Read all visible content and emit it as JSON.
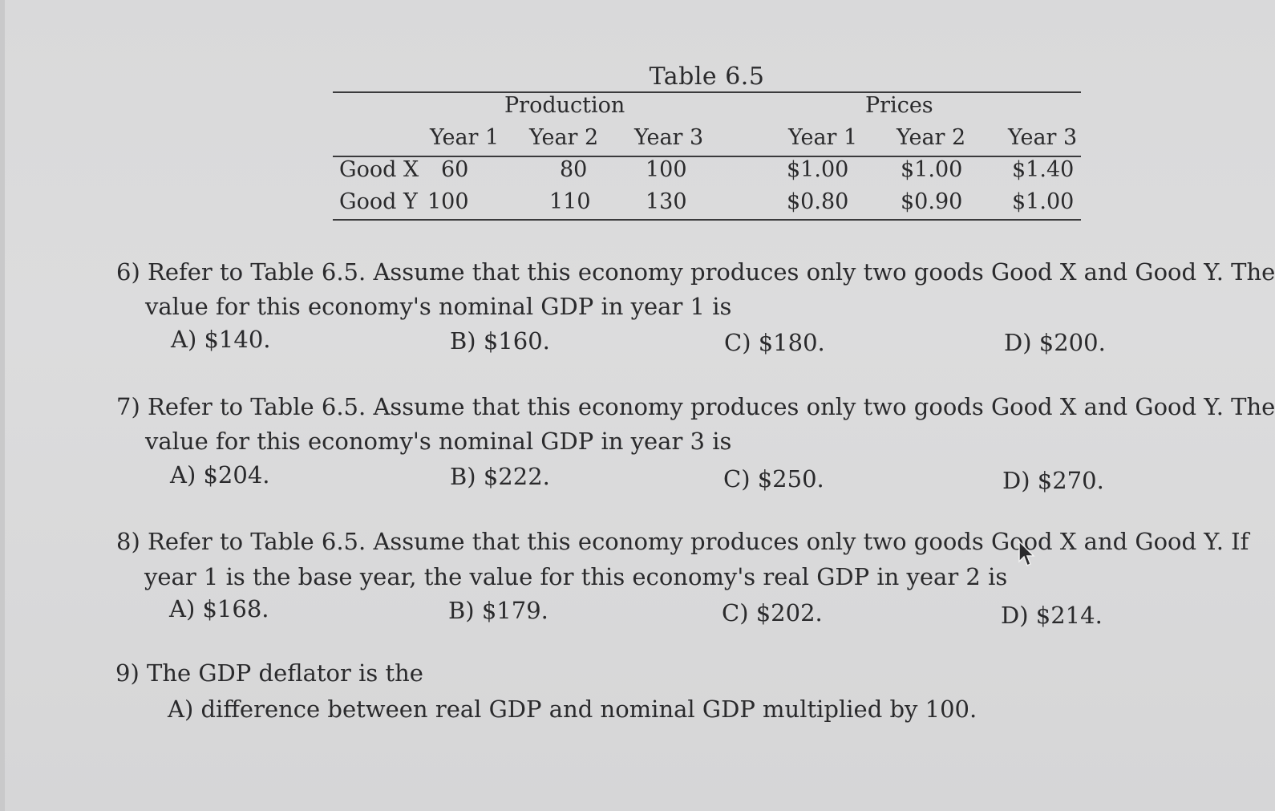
{
  "table": {
    "title": "Table 6.5",
    "group_headers": [
      "Production",
      "Prices"
    ],
    "year_headers": [
      "Year 1",
      "Year 2",
      "Year 3",
      "Year 1",
      "Year 2",
      "Year 3"
    ],
    "rows": [
      {
        "label": "Good X",
        "values": [
          "60",
          "80",
          "100",
          "$1.00",
          "$1.00",
          "$1.40"
        ]
      },
      {
        "label": "Good Y",
        "values": [
          "100",
          "110",
          "130",
          "$0.80",
          "$0.90",
          "$1.00"
        ]
      }
    ]
  },
  "questions": [
    {
      "line1": "6) Refer to Table 6.5. Assume that this economy produces only two goods Good X and Good Y. The",
      "line2": "value for this economy's nominal GDP in year 1 is",
      "options": [
        "A) $140.",
        "B) $160.",
        "C) $180.",
        "D) $200."
      ]
    },
    {
      "line1": "7) Refer to Table 6.5. Assume that this economy produces only two goods Good X and Good Y. The",
      "line2": "value for this economy's nominal GDP in year 3 is",
      "options": [
        "A) $204.",
        "B) $222.",
        "C) $250.",
        "D) $270."
      ]
    },
    {
      "line1": "8) Refer to Table 6.5. Assume that this economy produces only two goods Good X and Good Y. If",
      "line2": "year 1 is the base year, the value for this economy's real GDP in year 2 is",
      "options": [
        "A) $168.",
        "B) $179.",
        "C) $202.",
        "D) $214."
      ]
    },
    {
      "line1": "9) The GDP deflator is the",
      "options": [
        "A) difference between real GDP and nominal GDP multiplied by 100."
      ]
    }
  ],
  "cursor_icon": "mouse-pointer-icon"
}
